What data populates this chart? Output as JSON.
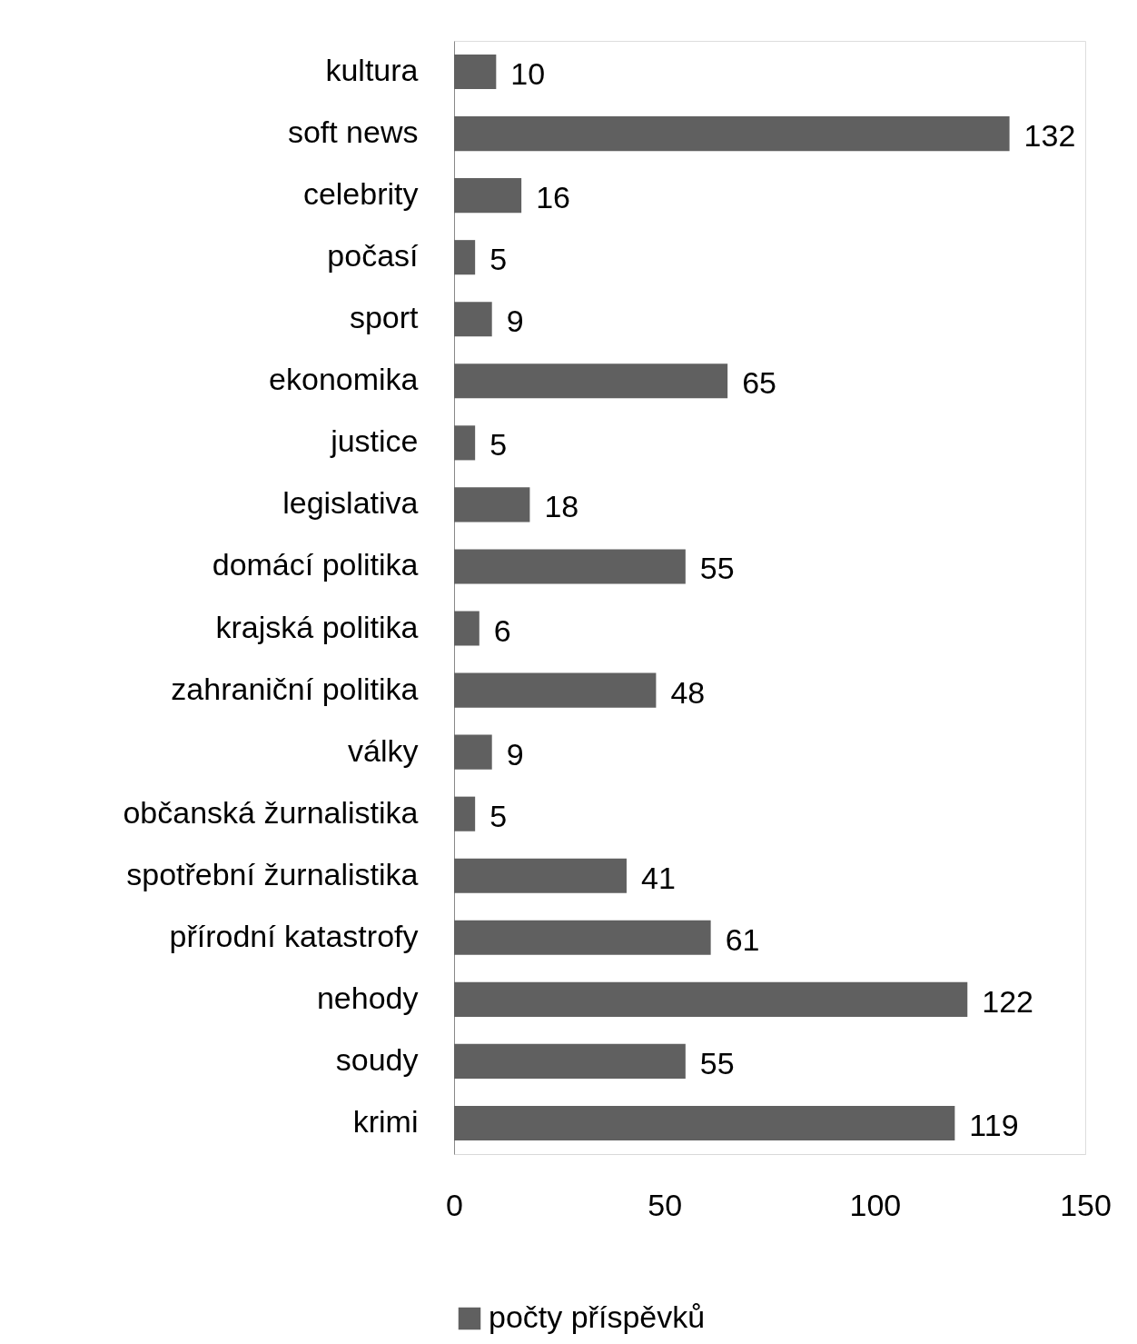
{
  "chart_data": {
    "type": "bar",
    "orientation": "horizontal",
    "categories": [
      "kultura",
      "soft news",
      "celebrity",
      "počasí",
      "sport",
      "ekonomika",
      "justice",
      "legislativa",
      "domácí politika",
      "krajská politika",
      "zahraniční politika",
      "války",
      "občanská žurnalistika",
      "spotřební žurnalistika",
      "přírodní katastrofy",
      "nehody",
      "soudy",
      "krimi"
    ],
    "series": [
      {
        "name": "počty příspěvků",
        "color": "#606060",
        "values": [
          10,
          132,
          16,
          5,
          9,
          65,
          5,
          18,
          55,
          6,
          48,
          9,
          5,
          41,
          61,
          122,
          55,
          119
        ]
      }
    ],
    "xlim": [
      0,
      150
    ],
    "xticks": [
      0,
      50,
      100,
      150
    ],
    "grid": false,
    "data_labels": true,
    "legend": "bottom"
  }
}
